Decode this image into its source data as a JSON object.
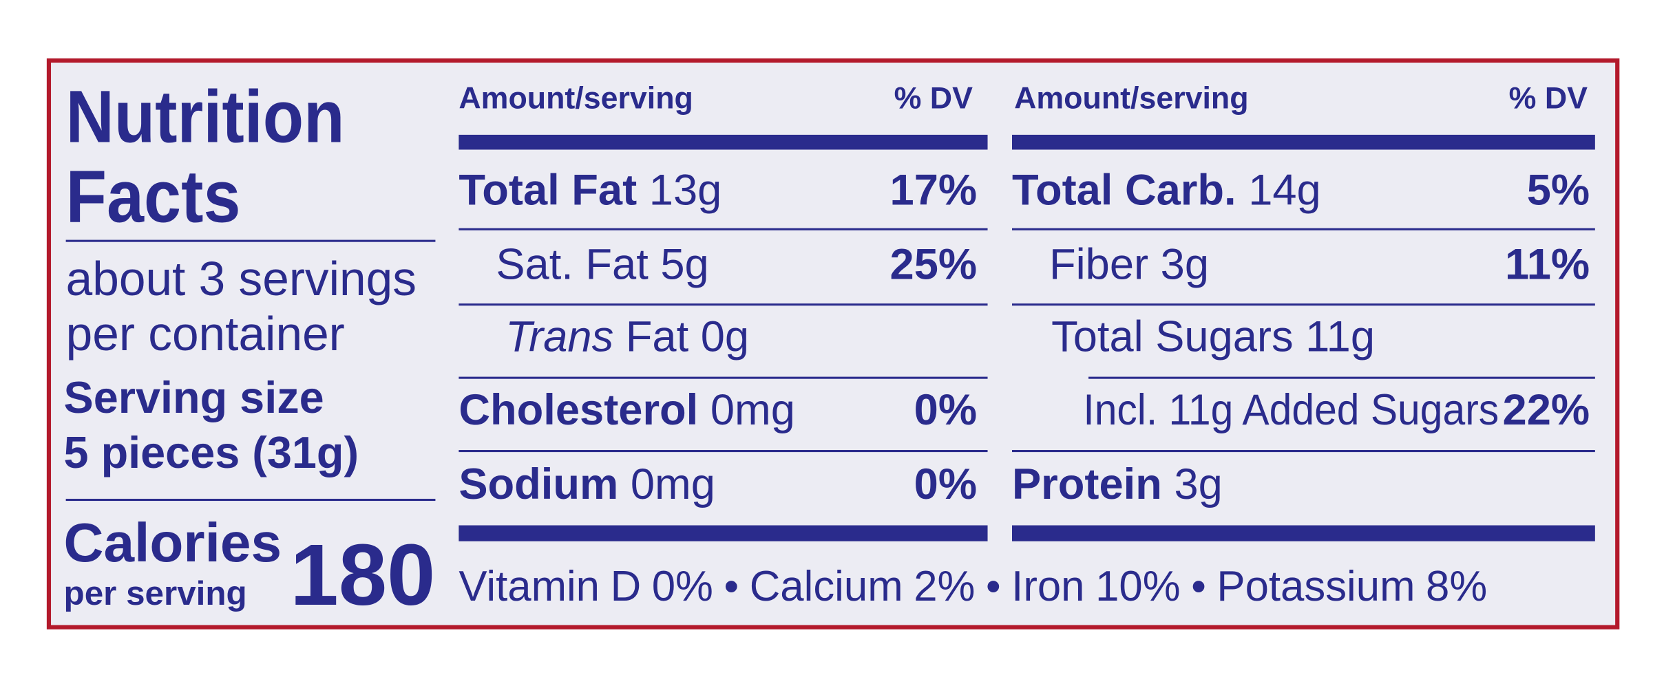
{
  "header": {
    "title_line1": "Nutrition",
    "title_line2": "Facts"
  },
  "servings": {
    "line1": "about 3 servings",
    "line2": "per container"
  },
  "serving_size": {
    "label": "Serving size",
    "value": "5 pieces (31g)"
  },
  "calories": {
    "label": "Calories",
    "sublabel": "per serving",
    "value": "180"
  },
  "columns": [
    {
      "amount_header": "Amount/serving",
      "dv_header": "% DV",
      "rows": [
        {
          "nutrient": "Total Fat",
          "amount": "13g",
          "dv": "17%"
        },
        {
          "nutrient": "Sat. Fat 5g",
          "dv": "25%"
        },
        {
          "nutrient": "Trans",
          "amount": "Fat 0g"
        },
        {
          "nutrient": "Cholesterol",
          "amount": "0mg",
          "dv": "0%"
        },
        {
          "nutrient": "Sodium",
          "amount": "0mg",
          "dv": "0%"
        }
      ]
    },
    {
      "amount_header": "Amount/serving",
      "dv_header": "% DV",
      "rows": [
        {
          "nutrient": "Total Carb.",
          "amount": "14g",
          "dv": "5%"
        },
        {
          "nutrient": "Fiber 3g",
          "dv": "11%"
        },
        {
          "nutrient": "Total Sugars 11g"
        },
        {
          "nutrient": "Incl. 11g Added Sugars",
          "dv": "22%"
        },
        {
          "nutrient": "Protein",
          "amount": "3g"
        }
      ]
    }
  ],
  "vitamins": [
    "Vitamin D 0%",
    "Calcium 2%",
    "Iron 10%",
    "Potassium 8%"
  ]
}
